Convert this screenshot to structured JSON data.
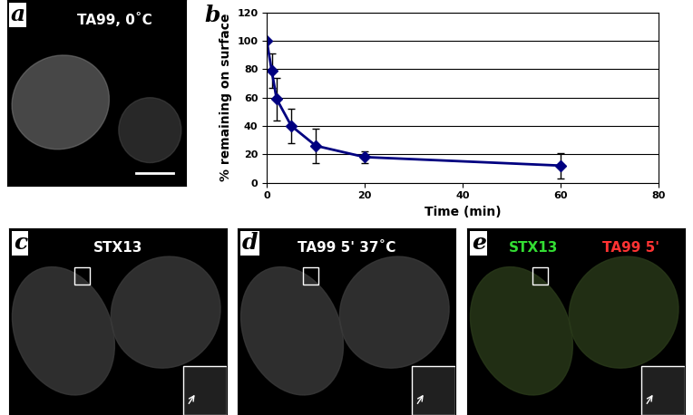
{
  "chart_data": {
    "type": "line",
    "x": [
      0,
      1,
      2,
      5,
      10,
      20,
      60
    ],
    "values": [
      100,
      79,
      59,
      40,
      26,
      18,
      12
    ],
    "errors": [
      0,
      12,
      15,
      12,
      12,
      4,
      9
    ],
    "xlabel": "Time (min)",
    "ylabel": "% remaining on surface",
    "xlim": [
      0,
      80
    ],
    "ylim": [
      0,
      120
    ],
    "xticks": [
      0,
      20,
      40,
      60,
      80
    ],
    "yticks": [
      0,
      20,
      40,
      60,
      80,
      100,
      120
    ],
    "grid": true,
    "color": "#000080",
    "marker": "diamond",
    "line_style": "solid"
  },
  "panel_letters": [
    "a",
    "b",
    "c",
    "d",
    "e"
  ],
  "images": [
    {
      "letter": "a",
      "label_parts": [
        {
          "text": "TA99, 0˚C",
          "color": "#ffffff"
        }
      ]
    },
    {
      "letter": "c",
      "label_parts": [
        {
          "text": "STX13",
          "color": "#ffffff"
        }
      ]
    },
    {
      "letter": "d",
      "label_parts": [
        {
          "text": "TA99 5' 37˚C",
          "color": "#ffffff"
        }
      ]
    },
    {
      "letter": "e",
      "label_parts": [
        {
          "text": "STX13",
          "color": "#33dd33"
        },
        {
          "text": "TA99 5'",
          "color": "#ff3333"
        }
      ]
    }
  ]
}
